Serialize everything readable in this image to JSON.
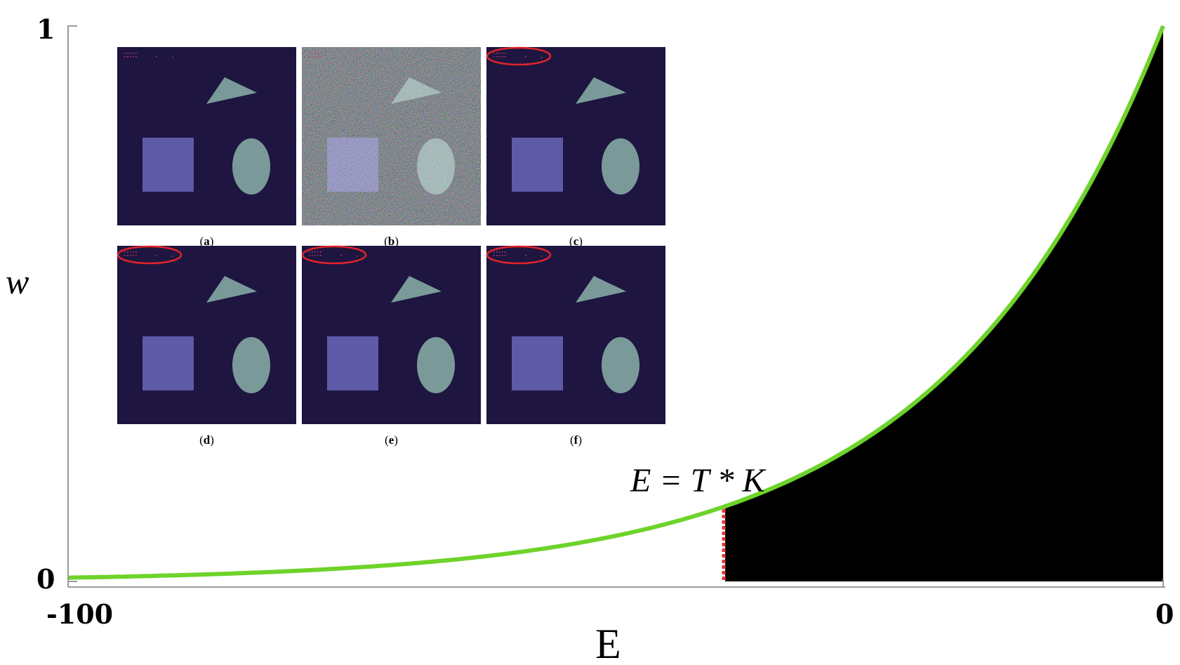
{
  "chart_data": {
    "type": "area",
    "xlabel": "E",
    "ylabel": "w",
    "xlim": [
      -100,
      0
    ],
    "ylim": [
      0,
      1
    ],
    "x_ticks": [
      "-100",
      "0"
    ],
    "y_ticks": [
      "1",
      "0"
    ],
    "curve": {
      "function": "w = exp(E/20)",
      "color": "#6ed32a",
      "x": [
        -100,
        -90,
        -80,
        -70,
        -60,
        -50,
        -45,
        -40,
        -35,
        -30,
        -25,
        -20,
        -15,
        -10,
        -5,
        0
      ],
      "y": [
        0.007,
        0.011,
        0.018,
        0.03,
        0.05,
        0.082,
        0.105,
        0.135,
        0.174,
        0.223,
        0.287,
        0.368,
        0.472,
        0.607,
        0.779,
        1.0
      ]
    },
    "shaded_region": {
      "x_from": -40,
      "x_to": 0,
      "color": "#000000"
    },
    "threshold": {
      "x": -40,
      "color": "#e53935",
      "style": "dotted"
    },
    "annotation": "E = T * K"
  },
  "insets": {
    "background_color": "#1e1540",
    "square_color": "#5f5aa8",
    "shape_color": "#7a9a9a",
    "highlight_color": "#e0242a",
    "panels": [
      {
        "label": "a",
        "noisy": false,
        "highlight": false
      },
      {
        "label": "b",
        "noisy": true,
        "highlight": false
      },
      {
        "label": "c",
        "noisy": false,
        "highlight": true
      },
      {
        "label": "d",
        "noisy": false,
        "highlight": true
      },
      {
        "label": "e",
        "noisy": false,
        "highlight": true
      },
      {
        "label": "f",
        "noisy": false,
        "highlight": true
      }
    ]
  }
}
